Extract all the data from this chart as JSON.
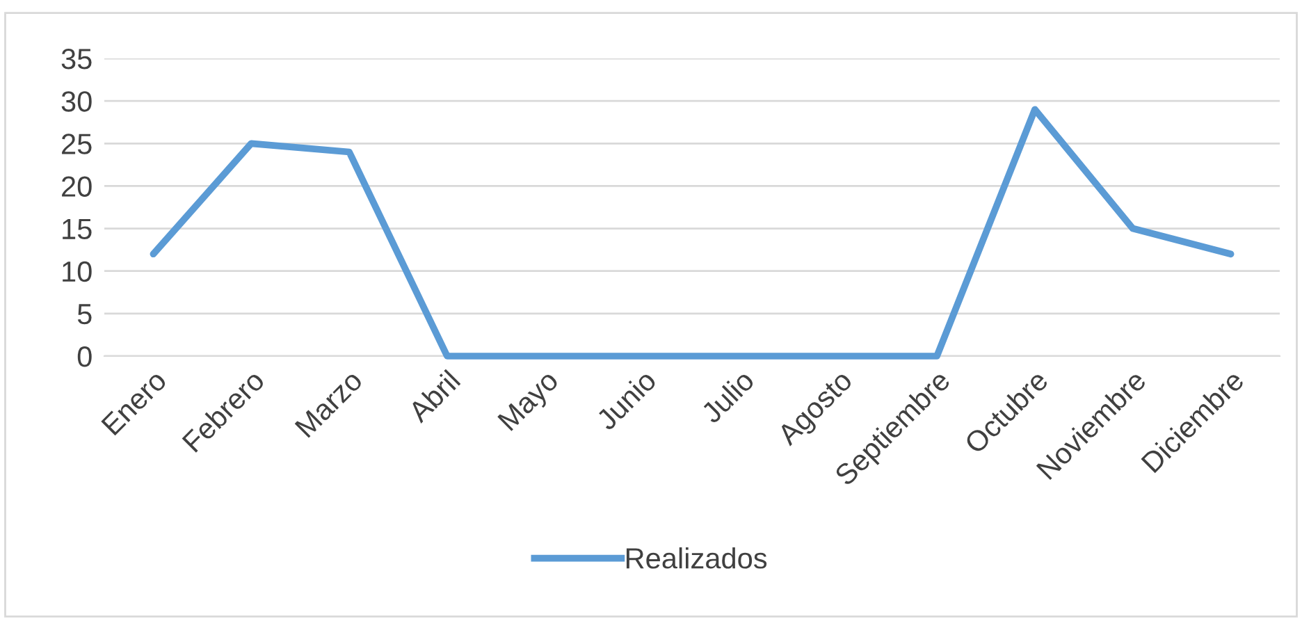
{
  "chart_data": {
    "type": "line",
    "categories": [
      "Enero",
      "Febrero",
      "Marzo",
      "Abril",
      "Mayo",
      "Junio",
      "Julio",
      "Agosto",
      "Septiembre",
      "Octubre",
      "Noviembre",
      "Diciembre"
    ],
    "series": [
      {
        "name": "Realizados",
        "color": "#5b9bd5",
        "values": [
          12,
          25,
          24,
          0,
          0,
          0,
          0,
          0,
          0,
          29,
          15,
          12
        ]
      }
    ],
    "ylim": [
      0,
      35
    ],
    "yticks": [
      0,
      5,
      10,
      15,
      20,
      25,
      30,
      35
    ],
    "grid": "y",
    "legend": "bottom",
    "marker": "none"
  }
}
